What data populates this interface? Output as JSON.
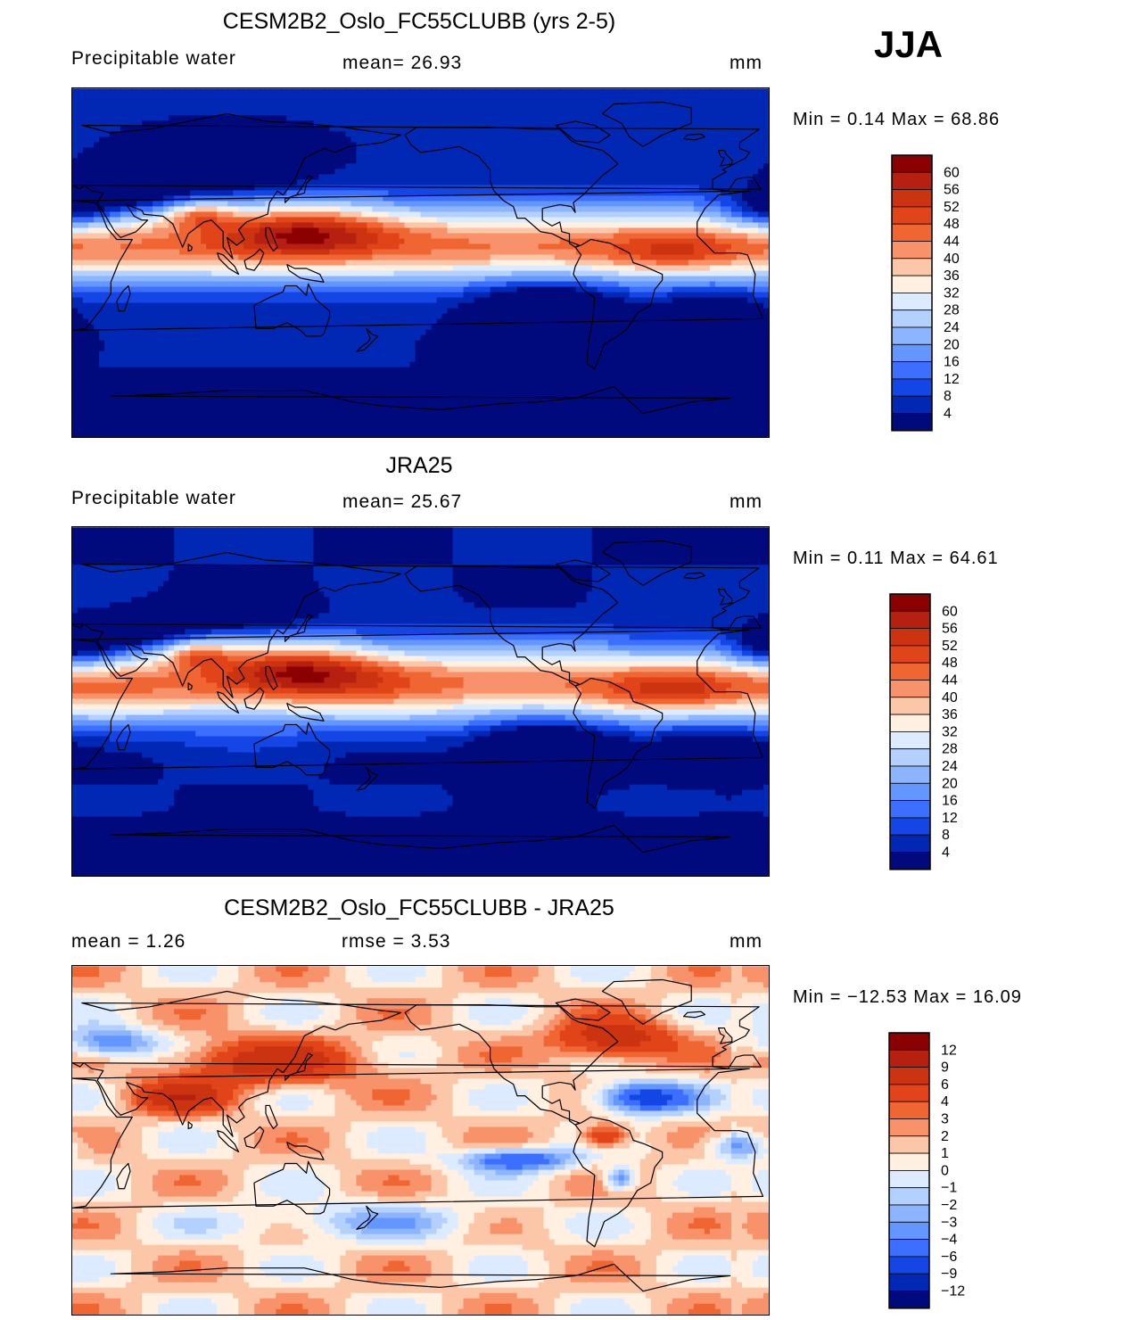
{
  "season": "JJA",
  "panels": [
    {
      "id": "model",
      "title": "CESM2B2_Oslo_FC55CLUBB (yrs 2-5)",
      "left_label": "Precipitable water",
      "middle_label": "mean=   26.93",
      "right_label": "mm",
      "min_max": "Min =    0.14  Max =    68.86",
      "colorbar_ticks": [
        "60",
        "56",
        "52",
        "48",
        "44",
        "40",
        "36",
        "32",
        "28",
        "24",
        "20",
        "16",
        "12",
        "8",
        "4"
      ],
      "colors": [
        "#8b0000",
        "#b52010",
        "#cc3311",
        "#e04418",
        "#f06632",
        "#f8926a",
        "#fcc6a8",
        "#fff0e2",
        "#dcebff",
        "#b4d0ff",
        "#8cb4ff",
        "#6496ff",
        "#3c6eff",
        "#1446e6",
        "#0028b4",
        "#000a7d"
      ],
      "map_type": "precipitable-water"
    },
    {
      "id": "obs",
      "title": "JRA25",
      "left_label": "Precipitable water",
      "middle_label": "mean=   25.67",
      "right_label": "mm",
      "min_max": "Min =    0.11  Max =    64.61",
      "colorbar_ticks": [
        "60",
        "56",
        "52",
        "48",
        "44",
        "40",
        "36",
        "32",
        "28",
        "24",
        "20",
        "16",
        "12",
        "8",
        "4"
      ],
      "colors": [
        "#8b0000",
        "#b52010",
        "#cc3311",
        "#e04418",
        "#f06632",
        "#f8926a",
        "#fcc6a8",
        "#fff0e2",
        "#dcebff",
        "#b4d0ff",
        "#8cb4ff",
        "#6496ff",
        "#3c6eff",
        "#1446e6",
        "#0028b4",
        "#000a7d"
      ],
      "map_type": "precipitable-water"
    },
    {
      "id": "diff",
      "title": "CESM2B2_Oslo_FC55CLUBB - JRA25",
      "left_label": "mean =     1.26",
      "middle_label": "rmse =     3.53",
      "right_label": "mm",
      "min_max": "Min = −12.53  Max =    16.09",
      "colorbar_ticks": [
        "12",
        "9",
        "6",
        "4",
        "3",
        "2",
        "1",
        "0",
        "−1",
        "−2",
        "−3",
        "−4",
        "−6",
        "−9",
        "−12"
      ],
      "colors": [
        "#8b0000",
        "#b52010",
        "#cc3311",
        "#e04418",
        "#f06632",
        "#f8926a",
        "#fcc6a8",
        "#fff0e2",
        "#dcebff",
        "#b4d0ff",
        "#8cb4ff",
        "#6496ff",
        "#3c6eff",
        "#1446e6",
        "#0028b4",
        "#000a7d"
      ],
      "map_type": "difference"
    }
  ]
}
